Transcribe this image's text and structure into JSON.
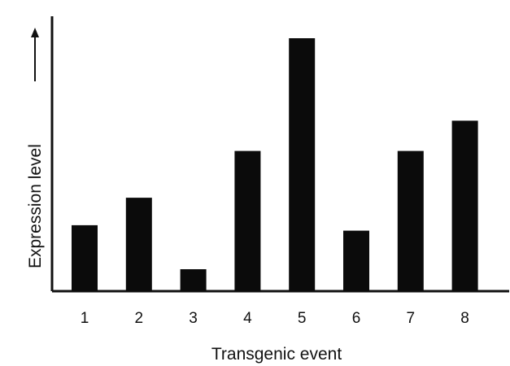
{
  "chart_data": {
    "type": "bar",
    "categories": [
      "1",
      "2",
      "3",
      "4",
      "5",
      "6",
      "7",
      "8"
    ],
    "values": [
      24,
      34,
      8,
      51,
      92,
      22,
      51,
      62
    ],
    "title": "",
    "xlabel": "Transgenic event",
    "ylabel": "Expression level",
    "ylim": [
      0,
      100
    ],
    "y_axis_arrow": true,
    "y_tick_labels": false,
    "grid": false,
    "legend": "none",
    "bar_color": "#0b0b0b"
  }
}
